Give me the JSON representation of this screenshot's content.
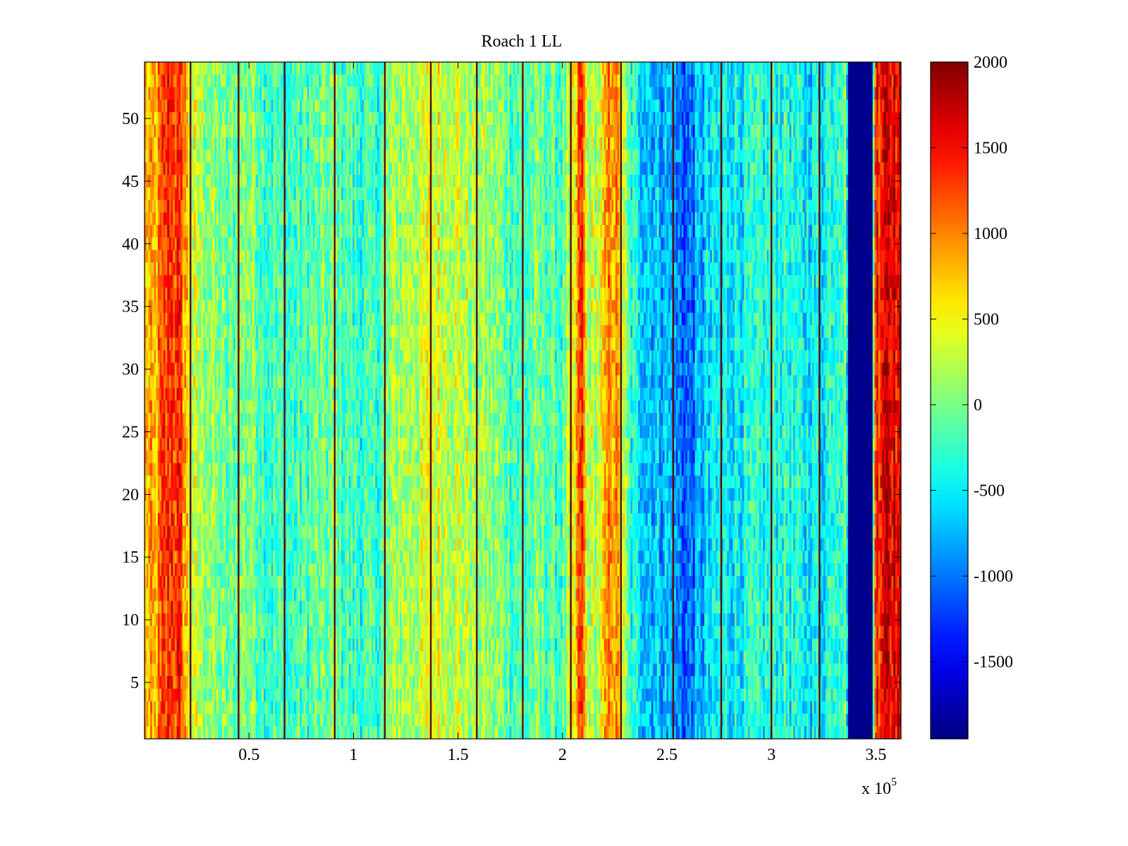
{
  "chart_data": {
    "type": "heatmap",
    "title": "Roach 1 LL",
    "xlabel": "",
    "ylabel": "",
    "x_exponent_label": "x 10",
    "x_exponent_power": "5",
    "xlim": [
      0,
      3.62
    ],
    "ylim": [
      0.5,
      54.5
    ],
    "x_ticks": [
      0.5,
      1,
      1.5,
      2,
      2.5,
      3,
      3.5
    ],
    "x_tick_labels": [
      "0.5",
      "1",
      "1.5",
      "2",
      "2.5",
      "3",
      "3.5"
    ],
    "y_ticks": [
      5,
      10,
      15,
      20,
      25,
      30,
      35,
      40,
      45,
      50
    ],
    "y_tick_labels": [
      "5",
      "10",
      "15",
      "20",
      "25",
      "30",
      "35",
      "40",
      "45",
      "50"
    ],
    "rows": 54,
    "colorbar": {
      "colormap": "jet",
      "clim": [
        -1950,
        2000
      ],
      "ticks": [
        2000,
        1500,
        1000,
        500,
        0,
        -500,
        -1000,
        -1500
      ],
      "tick_labels": [
        "2000",
        "1500",
        "1000",
        "500",
        "0",
        "-500",
        "-1000",
        "-1500"
      ]
    },
    "grid": false,
    "column_profile": [
      {
        "x": 0.0,
        "value": 800
      },
      {
        "x": 0.05,
        "value": 700
      },
      {
        "x": 0.08,
        "value": 1100
      },
      {
        "x": 0.12,
        "value": 1400
      },
      {
        "x": 0.16,
        "value": 1300
      },
      {
        "x": 0.19,
        "value": 1000
      },
      {
        "x": 0.22,
        "value": 300
      },
      {
        "x": 0.3,
        "value": 150
      },
      {
        "x": 0.4,
        "value": -150
      },
      {
        "x": 0.5,
        "value": 100
      },
      {
        "x": 0.6,
        "value": -200
      },
      {
        "x": 0.7,
        "value": -250
      },
      {
        "x": 0.8,
        "value": -150
      },
      {
        "x": 0.9,
        "value": -50
      },
      {
        "x": 1.0,
        "value": -250
      },
      {
        "x": 1.1,
        "value": -300
      },
      {
        "x": 1.2,
        "value": 150
      },
      {
        "x": 1.3,
        "value": 250
      },
      {
        "x": 1.4,
        "value": 400
      },
      {
        "x": 1.5,
        "value": 300
      },
      {
        "x": 1.6,
        "value": 150
      },
      {
        "x": 1.7,
        "value": 0
      },
      {
        "x": 1.8,
        "value": -200
      },
      {
        "x": 1.9,
        "value": -100
      },
      {
        "x": 2.0,
        "value": -200
      },
      {
        "x": 2.06,
        "value": 500
      },
      {
        "x": 2.09,
        "value": 1500
      },
      {
        "x": 2.12,
        "value": 200
      },
      {
        "x": 2.18,
        "value": 300
      },
      {
        "x": 2.23,
        "value": 1100
      },
      {
        "x": 2.27,
        "value": 700
      },
      {
        "x": 2.32,
        "value": -300
      },
      {
        "x": 2.4,
        "value": -600
      },
      {
        "x": 2.5,
        "value": -750
      },
      {
        "x": 2.56,
        "value": -1000
      },
      {
        "x": 2.6,
        "value": -1100
      },
      {
        "x": 2.65,
        "value": -800
      },
      {
        "x": 2.75,
        "value": -500
      },
      {
        "x": 2.85,
        "value": -450
      },
      {
        "x": 2.95,
        "value": -400
      },
      {
        "x": 3.05,
        "value": -300
      },
      {
        "x": 3.15,
        "value": -500
      },
      {
        "x": 3.25,
        "value": -450
      },
      {
        "x": 3.3,
        "value": -200
      },
      {
        "x": 3.36,
        "value": -50
      },
      {
        "x": 3.37,
        "value": -1900
      },
      {
        "x": 3.48,
        "value": -1900
      },
      {
        "x": 3.495,
        "value": 1300
      },
      {
        "x": 3.55,
        "value": 1800
      },
      {
        "x": 3.62,
        "value": 1500
      }
    ],
    "dark_lines_x": [
      0.22,
      0.45,
      0.67,
      0.91,
      1.15,
      1.37,
      1.59,
      1.81,
      2.04,
      2.28,
      2.53,
      2.76,
      3.0,
      3.23
    ]
  }
}
